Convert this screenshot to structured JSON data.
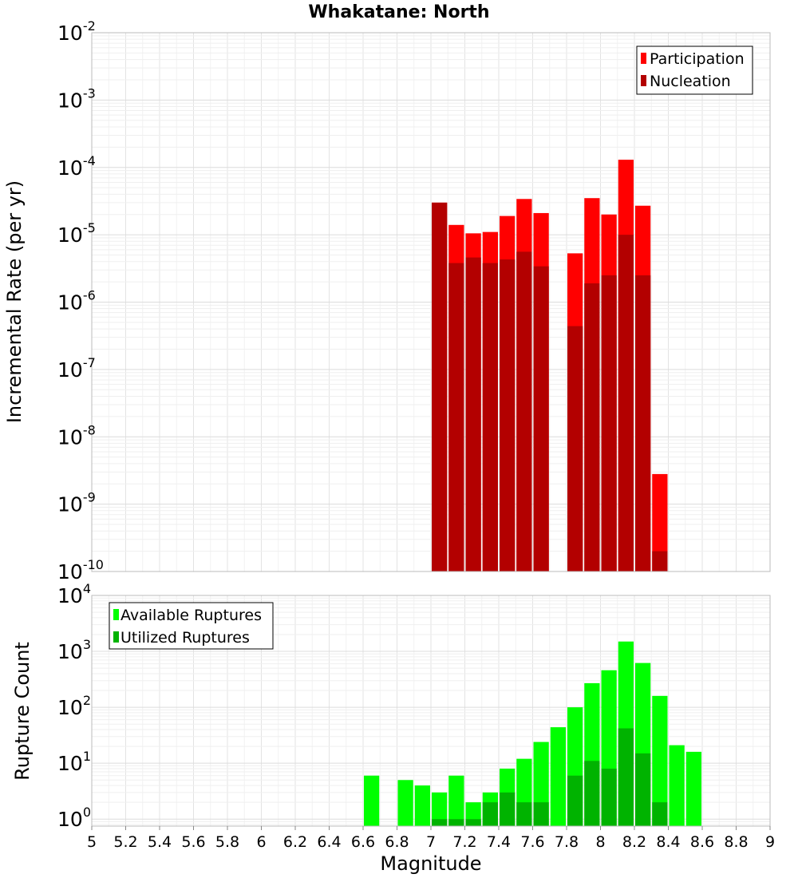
{
  "chart_data": [
    {
      "type": "bar",
      "title": "Whakatane: North",
      "xlabel": "",
      "ylabel": "Incremental Rate (per yr)",
      "yscale": "log",
      "ylim": [
        1e-10,
        0.01
      ],
      "xlim": [
        5,
        9
      ],
      "ytick_labels": [
        {
          "v": 1e-10,
          "base": "10",
          "exp": "-10"
        },
        {
          "v": 1e-09,
          "base": "10",
          "exp": "-9"
        },
        {
          "v": 1e-08,
          "base": "10",
          "exp": "-8"
        },
        {
          "v": 1e-07,
          "base": "10",
          "exp": "-7"
        },
        {
          "v": 1e-06,
          "base": "10",
          "exp": "-6"
        },
        {
          "v": 1e-05,
          "base": "10",
          "exp": "-5"
        },
        {
          "v": 0.0001,
          "base": "10",
          "exp": "-4"
        },
        {
          "v": 0.001,
          "base": "10",
          "exp": "-3"
        },
        {
          "v": 0.01,
          "base": "10",
          "exp": "-2"
        }
      ],
      "grid": true,
      "legend_position": "top-right",
      "series": [
        {
          "name": "Participation",
          "color": "#ff0000",
          "x": [
            7.05,
            7.15,
            7.25,
            7.35,
            7.45,
            7.55,
            7.65,
            7.85,
            7.95,
            8.05,
            8.15,
            8.25,
            8.35
          ],
          "values": [
            3e-05,
            1.4e-05,
            1.05e-05,
            1.1e-05,
            1.9e-05,
            3.4e-05,
            2.1e-05,
            5.3e-06,
            3.5e-05,
            2e-05,
            0.00013,
            2.7e-05,
            2.8e-09
          ]
        },
        {
          "name": "Nucleation",
          "color": "#b30000",
          "x": [
            7.05,
            7.15,
            7.25,
            7.35,
            7.45,
            7.55,
            7.65,
            7.85,
            7.95,
            8.05,
            8.15,
            8.25,
            8.35
          ],
          "values": [
            3e-05,
            3.8e-06,
            4.6e-06,
            3.8e-06,
            4.3e-06,
            5.6e-06,
            3.4e-06,
            4.4e-07,
            1.9e-06,
            2.5e-06,
            1e-05,
            2.5e-06,
            2e-10
          ]
        }
      ]
    },
    {
      "type": "bar",
      "title": "",
      "xlabel": "Magnitude",
      "ylabel": "Rupture Count",
      "yscale": "log",
      "ylim": [
        0.75,
        10000
      ],
      "xlim": [
        5,
        9
      ],
      "xticks": [
        5,
        5.2,
        5.4,
        5.6,
        5.8,
        6,
        6.2,
        6.4,
        6.6,
        6.8,
        7,
        7.2,
        7.4,
        7.6,
        7.8,
        8,
        8.2,
        8.4,
        8.6,
        8.8,
        9
      ],
      "xtick_labels": [
        "5",
        "5.2",
        "5.4",
        "5.6",
        "5.8",
        "6",
        "6.2",
        "6.4",
        "6.6",
        "6.8",
        "7",
        "7.2",
        "7.4",
        "7.6",
        "7.8",
        "8",
        "8.2",
        "8.4",
        "8.6",
        "8.8",
        "9"
      ],
      "ytick_labels": [
        {
          "v": 1,
          "base": "10",
          "exp": "0"
        },
        {
          "v": 10,
          "base": "10",
          "exp": "1"
        },
        {
          "v": 100,
          "base": "10",
          "exp": "2"
        },
        {
          "v": 1000,
          "base": "10",
          "exp": "3"
        },
        {
          "v": 10000,
          "base": "10",
          "exp": "4"
        }
      ],
      "grid": true,
      "legend_position": "top-left",
      "series": [
        {
          "name": "Available Ruptures",
          "color": "#00ff00",
          "x": [
            6.65,
            6.85,
            6.95,
            7.05,
            7.15,
            7.25,
            7.35,
            7.45,
            7.55,
            7.65,
            7.75,
            7.85,
            7.95,
            8.05,
            8.15,
            8.25,
            8.35,
            8.45,
            8.55
          ],
          "values": [
            6,
            5,
            4,
            3,
            6,
            2,
            3,
            8,
            12,
            24,
            44,
            100,
            270,
            460,
            1500,
            620,
            160,
            21,
            16
          ]
        },
        {
          "name": "Utilized Ruptures",
          "color": "#00b300",
          "x": [
            7.05,
            7.15,
            7.25,
            7.35,
            7.45,
            7.55,
            7.65,
            7.85,
            7.95,
            8.05,
            8.15,
            8.25,
            8.35
          ],
          "values": [
            1,
            1,
            1,
            2,
            3,
            2,
            2,
            6,
            11,
            8,
            42,
            15,
            2
          ]
        }
      ]
    }
  ]
}
